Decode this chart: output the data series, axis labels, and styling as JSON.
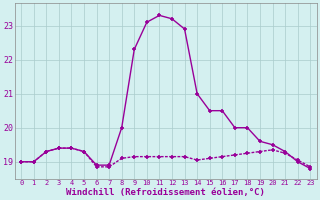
{
  "xlabel": "Windchill (Refroidissement éolien,°C)",
  "hours": [
    0,
    1,
    2,
    3,
    4,
    5,
    6,
    7,
    8,
    9,
    10,
    11,
    12,
    13,
    14,
    15,
    16,
    17,
    18,
    19,
    20,
    21,
    22,
    23
  ],
  "temp": [
    19.0,
    19.0,
    19.3,
    19.4,
    19.4,
    19.3,
    18.9,
    18.9,
    20.0,
    22.3,
    23.1,
    23.3,
    23.2,
    22.9,
    21.0,
    20.5,
    20.5,
    20.0,
    20.0,
    19.6,
    19.5,
    19.3,
    19.0,
    18.8
  ],
  "windchill": [
    19.0,
    19.0,
    19.3,
    19.4,
    19.4,
    19.3,
    18.85,
    18.85,
    19.1,
    19.15,
    19.15,
    19.15,
    19.15,
    19.15,
    19.05,
    19.1,
    19.15,
    19.2,
    19.25,
    19.3,
    19.35,
    19.25,
    19.05,
    18.85
  ],
  "line_color": "#990099",
  "bg_color": "#d4f0f0",
  "grid_color": "#aacccc",
  "ylim": [
    18.5,
    23.65
  ],
  "yticks": [
    19,
    20,
    21,
    22,
    23
  ],
  "xticks": [
    0,
    1,
    2,
    3,
    4,
    5,
    6,
    7,
    8,
    9,
    10,
    11,
    12,
    13,
    14,
    15,
    16,
    17,
    18,
    19,
    20,
    21,
    22,
    23
  ],
  "marker_size": 3.5,
  "linewidth": 1.0
}
